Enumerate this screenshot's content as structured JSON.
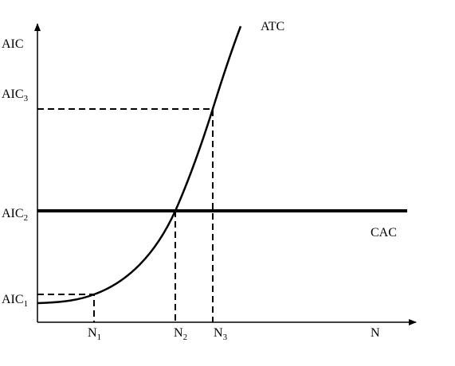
{
  "axes": {
    "y_label": "AIC",
    "x_label": "N"
  },
  "curves": {
    "atc": "ATC",
    "cac": "CAC"
  },
  "y_levels": [
    {
      "text": "AIC",
      "sub": "1"
    },
    {
      "text": "AIC",
      "sub": "2"
    },
    {
      "text": "AIC",
      "sub": "3"
    }
  ],
  "x_levels": [
    {
      "text": "N",
      "sub": "1"
    },
    {
      "text": "N",
      "sub": "2"
    },
    {
      "text": "N",
      "sub": "3"
    }
  ]
}
